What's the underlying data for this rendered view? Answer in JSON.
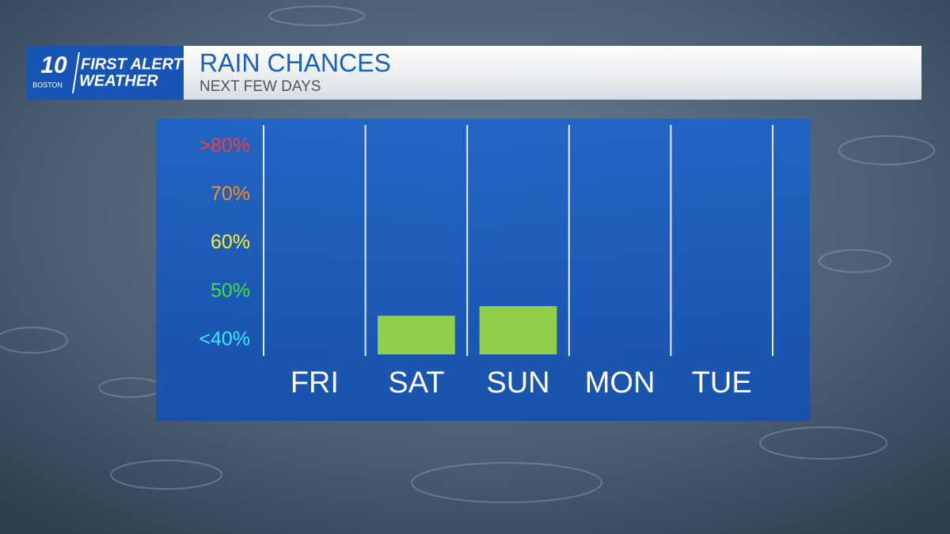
{
  "logo": {
    "number": "10",
    "city": "BOSTON",
    "line1": "FIRST ALERT",
    "line2": "WEATHER"
  },
  "chart_data": {
    "type": "bar",
    "title": "RAIN CHANCES",
    "subtitle": "NEXT FEW DAYS",
    "categories": [
      "FRI",
      "SAT",
      "SUN",
      "MON",
      "TUE"
    ],
    "values": [
      null,
      45,
      47,
      null,
      null
    ],
    "color": "#8fcf4a",
    "ylim": [
      37,
      85
    ],
    "yticks": [
      {
        "value": 80,
        "label": ">80%"
      },
      {
        "value": 70,
        "label": "70%"
      },
      {
        "value": 60,
        "label": "60%"
      },
      {
        "value": 50,
        "label": "50%"
      },
      {
        "value": 40,
        "label": "<40%"
      }
    ],
    "ytick_colors": [
      "#ff3b30",
      "#ff8c1a",
      "#ffee33",
      "#44e03a",
      "#38e8ff"
    ],
    "grid": false
  }
}
